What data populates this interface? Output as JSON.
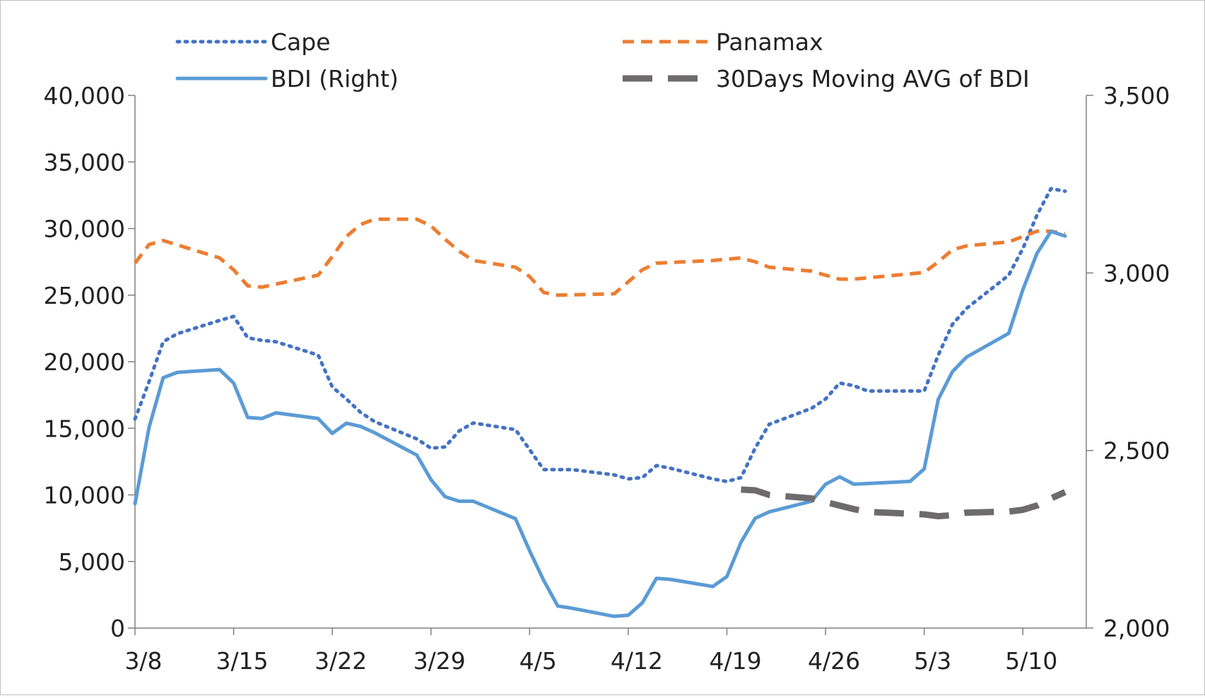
{
  "chart_data": {
    "type": "line",
    "title": "",
    "xlabel": "",
    "ylabel": "",
    "grid": false,
    "legend_position": "top",
    "x_tick_labels": [
      "3/8",
      "3/15",
      "3/22",
      "3/29",
      "4/5",
      "4/12",
      "4/19",
      "4/26",
      "5/3",
      "5/10"
    ],
    "y_left": {
      "range": [
        0,
        40000
      ],
      "ticks": [
        "0",
        "5,000",
        "10,000",
        "15,000",
        "20,000",
        "25,000",
        "30,000",
        "35,000",
        "40,000"
      ]
    },
    "y_right": {
      "range": [
        2000,
        3500
      ],
      "ticks": [
        "2,000",
        "2,500",
        "3,000",
        "3,500"
      ]
    },
    "series": [
      {
        "name": "Cape",
        "axis": "left",
        "style": "dotted",
        "color": "#4472C4",
        "points": [
          [
            "3/8",
            15700
          ],
          [
            "3/9",
            18500
          ],
          [
            "3/10",
            21500
          ],
          [
            "3/11",
            22100
          ],
          [
            "3/14",
            23100
          ],
          [
            "3/15",
            23400
          ],
          [
            "3/16",
            21800
          ],
          [
            "3/17",
            21600
          ],
          [
            "3/18",
            21500
          ],
          [
            "3/21",
            20500
          ],
          [
            "3/22",
            18100
          ],
          [
            "3/23",
            17200
          ],
          [
            "3/24",
            16200
          ],
          [
            "3/25",
            15500
          ],
          [
            "3/28",
            14200
          ],
          [
            "3/29",
            13500
          ],
          [
            "3/30",
            13600
          ],
          [
            "3/31",
            14800
          ],
          [
            "4/1",
            15400
          ],
          [
            "4/4",
            14900
          ],
          [
            "4/5",
            13400
          ],
          [
            "4/6",
            11900
          ],
          [
            "4/7",
            11900
          ],
          [
            "4/8",
            11900
          ],
          [
            "4/11",
            11500
          ],
          [
            "4/12",
            11200
          ],
          [
            "4/13",
            11300
          ],
          [
            "4/14",
            12200
          ],
          [
            "4/15",
            12000
          ],
          [
            "4/18",
            11200
          ],
          [
            "4/19",
            11000
          ],
          [
            "4/20",
            11300
          ],
          [
            "4/21",
            13500
          ],
          [
            "4/22",
            15300
          ],
          [
            "4/25",
            16500
          ],
          [
            "4/26",
            17200
          ],
          [
            "4/27",
            18400
          ],
          [
            "4/28",
            18200
          ],
          [
            "4/29",
            17800
          ],
          [
            "5/2",
            17800
          ],
          [
            "5/3",
            17800
          ],
          [
            "5/4",
            20500
          ],
          [
            "5/5",
            22800
          ],
          [
            "5/6",
            24000
          ],
          [
            "5/9",
            26500
          ],
          [
            "5/10",
            28500
          ],
          [
            "5/11",
            31000
          ],
          [
            "5/12",
            33000
          ],
          [
            "5/13",
            32800
          ]
        ]
      },
      {
        "name": "Panamax",
        "axis": "left",
        "style": "dashed",
        "color": "#ED7D31",
        "points": [
          [
            "3/8",
            27400
          ],
          [
            "3/9",
            28800
          ],
          [
            "3/10",
            29100
          ],
          [
            "3/14",
            27800
          ],
          [
            "3/15",
            26900
          ],
          [
            "3/16",
            25700
          ],
          [
            "3/17",
            25600
          ],
          [
            "3/21",
            26500
          ],
          [
            "3/22",
            27900
          ],
          [
            "3/23",
            29400
          ],
          [
            "3/24",
            30300
          ],
          [
            "3/25",
            30700
          ],
          [
            "3/28",
            30700
          ],
          [
            "3/29",
            30200
          ],
          [
            "3/30",
            29200
          ],
          [
            "3/31",
            28300
          ],
          [
            "4/1",
            27600
          ],
          [
            "4/4",
            27100
          ],
          [
            "4/5",
            26400
          ],
          [
            "4/6",
            25200
          ],
          [
            "4/7",
            25000
          ],
          [
            "4/11",
            25100
          ],
          [
            "4/12",
            26000
          ],
          [
            "4/13",
            26900
          ],
          [
            "4/14",
            27400
          ],
          [
            "4/18",
            27600
          ],
          [
            "4/19",
            27700
          ],
          [
            "4/20",
            27800
          ],
          [
            "4/21",
            27500
          ],
          [
            "4/22",
            27100
          ],
          [
            "4/25",
            26800
          ],
          [
            "4/26",
            26500
          ],
          [
            "4/27",
            26200
          ],
          [
            "4/28",
            26200
          ],
          [
            "5/2",
            26600
          ],
          [
            "5/3",
            26700
          ],
          [
            "5/4",
            27500
          ],
          [
            "5/5",
            28400
          ],
          [
            "5/6",
            28700
          ],
          [
            "5/9",
            29000
          ],
          [
            "5/10",
            29400
          ],
          [
            "5/11",
            29800
          ],
          [
            "5/12",
            29800
          ],
          [
            "5/13",
            29600
          ]
        ]
      },
      {
        "name": "BDI (Right)",
        "axis": "right",
        "style": "solid",
        "color": "#5B9BD5",
        "points": [
          [
            "3/8",
            2350
          ],
          [
            "3/9",
            2565
          ],
          [
            "3/10",
            2705
          ],
          [
            "3/11",
            2720
          ],
          [
            "3/14",
            2728
          ],
          [
            "3/15",
            2690
          ],
          [
            "3/16",
            2593
          ],
          [
            "3/17",
            2590
          ],
          [
            "3/18",
            2606
          ],
          [
            "3/21",
            2590
          ],
          [
            "3/22",
            2548
          ],
          [
            "3/23",
            2577
          ],
          [
            "3/24",
            2568
          ],
          [
            "3/25",
            2550
          ],
          [
            "3/28",
            2487
          ],
          [
            "3/29",
            2418
          ],
          [
            "3/30",
            2370
          ],
          [
            "3/31",
            2357
          ],
          [
            "4/1",
            2357
          ],
          [
            "4/4",
            2308
          ],
          [
            "4/5",
            2218
          ],
          [
            "4/6",
            2134
          ],
          [
            "4/7",
            2062
          ],
          [
            "4/8",
            2056
          ],
          [
            "4/11",
            2033
          ],
          [
            "4/12",
            2036
          ],
          [
            "4/13",
            2071
          ],
          [
            "4/14",
            2140
          ],
          [
            "4/15",
            2137
          ],
          [
            "4/18",
            2117
          ],
          [
            "4/19",
            2145
          ],
          [
            "4/20",
            2242
          ],
          [
            "4/21",
            2309
          ],
          [
            "4/22",
            2327
          ],
          [
            "4/25",
            2357
          ],
          [
            "4/26",
            2405
          ],
          [
            "4/27",
            2426
          ],
          [
            "4/28",
            2405
          ],
          [
            "5/2",
            2413
          ],
          [
            "5/3",
            2448
          ],
          [
            "5/4",
            2644
          ],
          [
            "5/5",
            2722
          ],
          [
            "5/6",
            2763
          ],
          [
            "5/9",
            2830
          ],
          [
            "5/10",
            2953
          ],
          [
            "5/11",
            3055
          ],
          [
            "5/12",
            3117
          ],
          [
            "5/13",
            3104
          ]
        ]
      },
      {
        "name": "30Days Moving AVG of BDI",
        "axis": "right",
        "style": "long-dashed",
        "color": "#6E6B6C",
        "points": [
          [
            "4/20",
            2390
          ],
          [
            "4/21",
            2388
          ],
          [
            "4/22",
            2375
          ],
          [
            "4/25",
            2365
          ],
          [
            "4/26",
            2355
          ],
          [
            "4/27",
            2345
          ],
          [
            "4/28",
            2335
          ],
          [
            "4/29",
            2327
          ],
          [
            "5/2",
            2322
          ],
          [
            "5/3",
            2320
          ],
          [
            "5/4",
            2315
          ],
          [
            "5/5",
            2318
          ],
          [
            "5/6",
            2325
          ],
          [
            "5/9",
            2328
          ],
          [
            "5/10",
            2333
          ],
          [
            "5/11",
            2345
          ],
          [
            "5/12",
            2365
          ],
          [
            "5/13",
            2383
          ]
        ]
      }
    ]
  }
}
